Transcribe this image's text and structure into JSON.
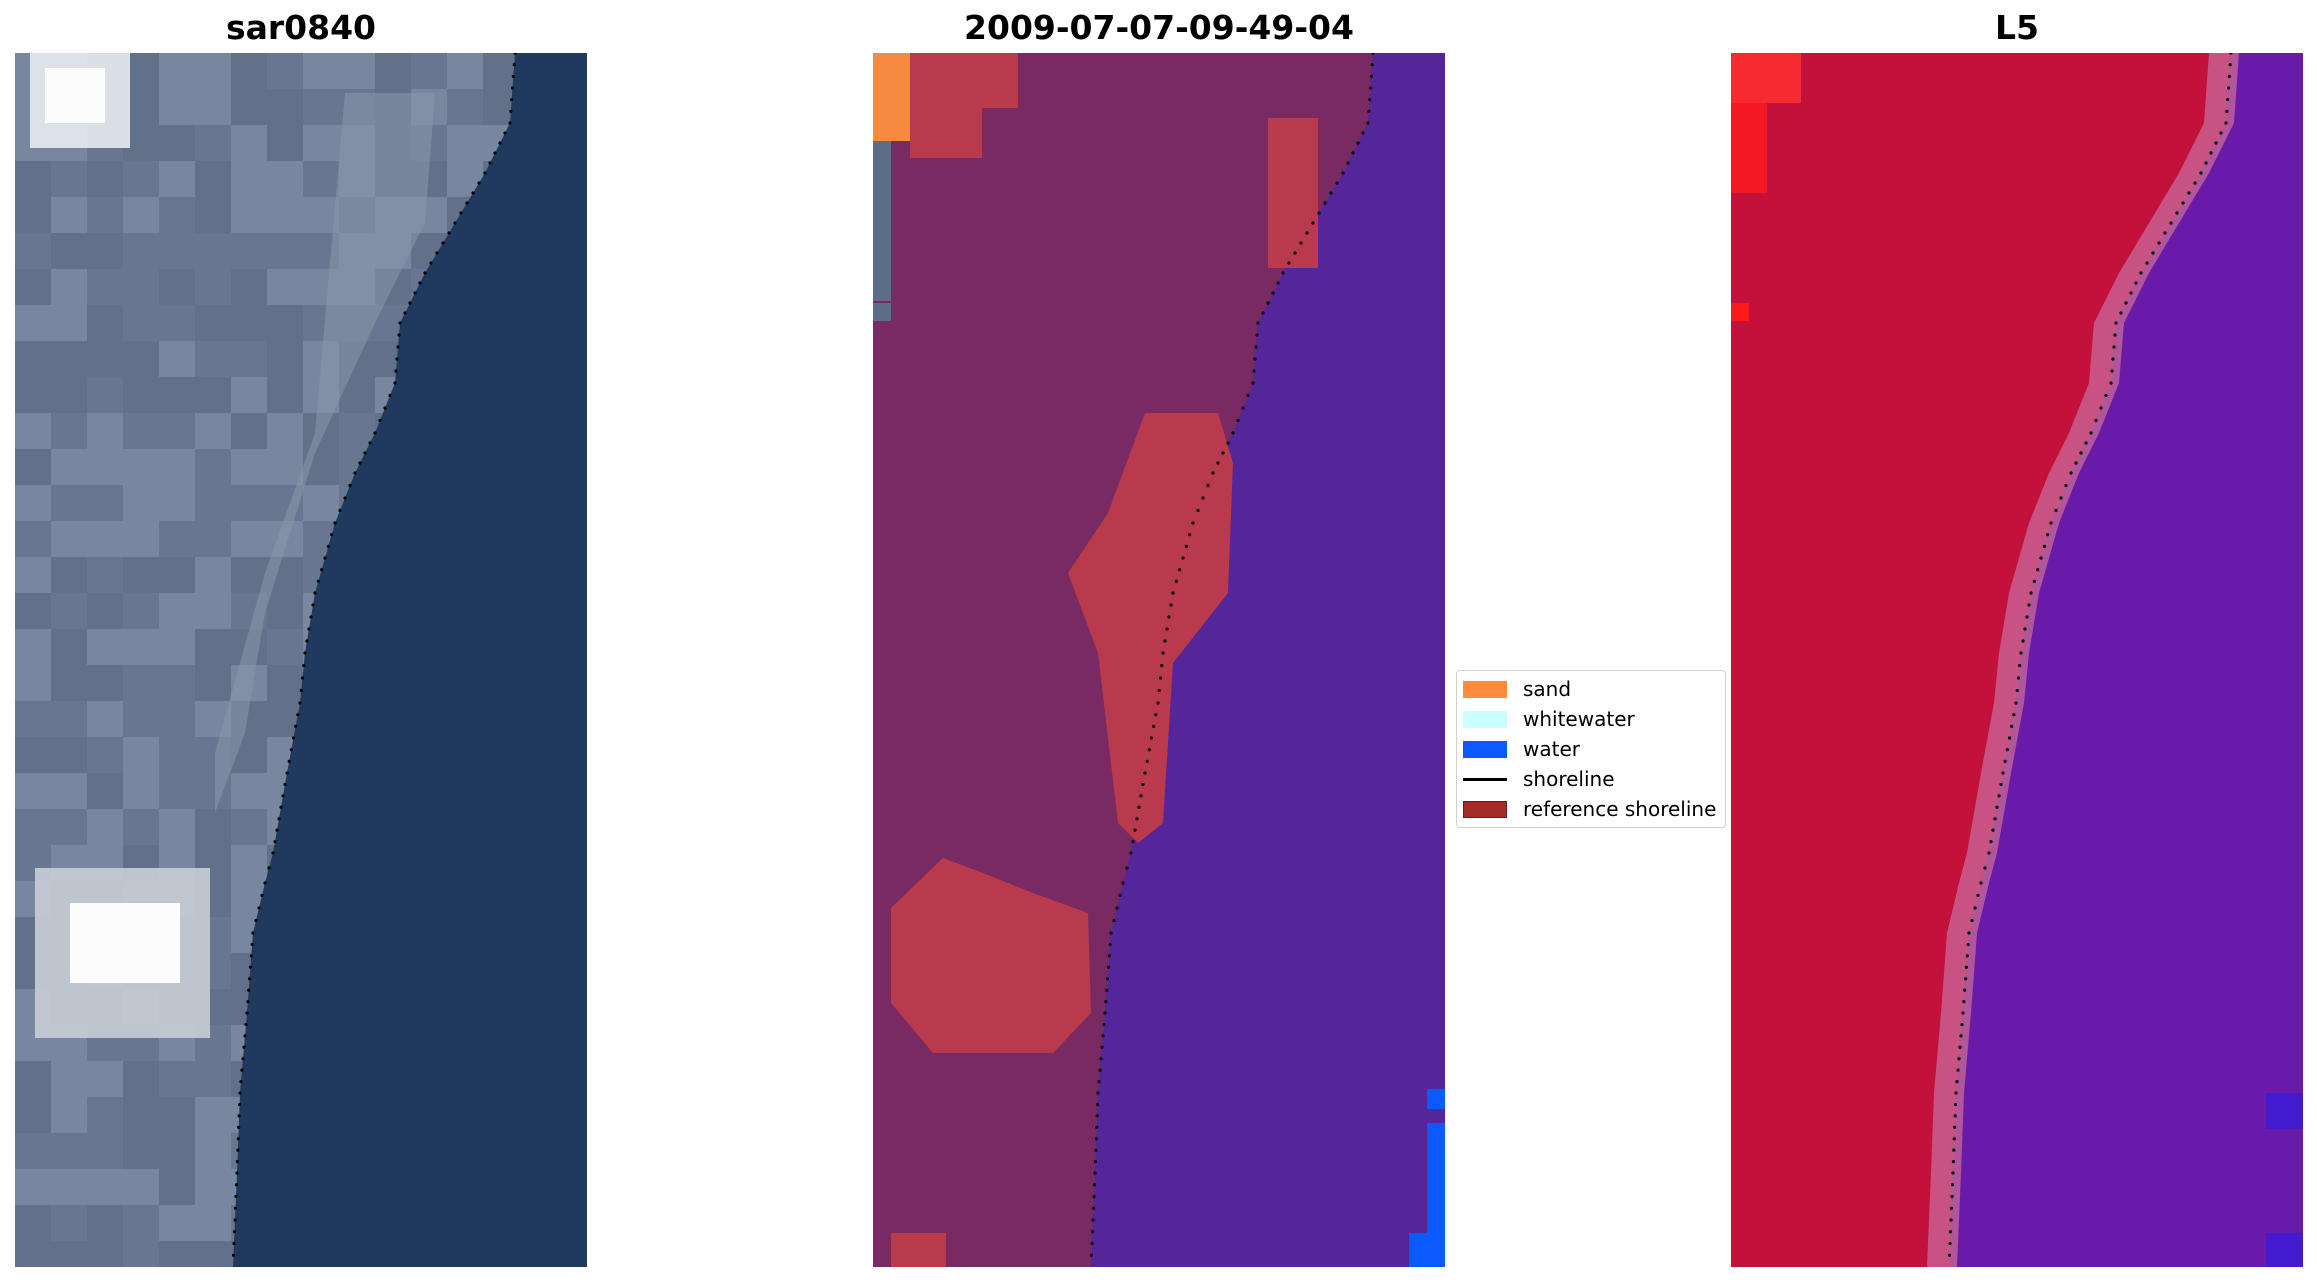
{
  "titles": {
    "left": "sar0840",
    "middle": "2009-07-07-09-49-04",
    "right": "L5"
  },
  "legend": {
    "items": [
      {
        "label": "sand",
        "kind": "patch",
        "color": "#ff8c3c",
        "edge": "#ff8c3c"
      },
      {
        "label": "whitewater",
        "kind": "patch",
        "color": "#c8ffff",
        "edge": "#c8ffff"
      },
      {
        "label": "water",
        "kind": "patch",
        "color": "#0a5aff",
        "edge": "#0a5aff"
      },
      {
        "label": "shoreline",
        "kind": "line",
        "color": "#000000"
      },
      {
        "label": "reference shoreline",
        "kind": "patch",
        "color": "#a52a2a",
        "edge": "#6b1a1a"
      }
    ]
  },
  "colors": {
    "rgb_land": "#6f7d96",
    "rgb_land_dark": "#5c6b85",
    "rgb_water": "#1f3a5c",
    "rgb_bright": "#e8ecef",
    "class_land": "#7a2a62",
    "class_sand_red": "#b83a4c",
    "class_sand": "#f58a40",
    "class_water_purple": "#55259a",
    "class_water_blue": "#0a5aff",
    "class_whitewater_grey": "#5d6d86",
    "index_land": "#c2123c",
    "index_water": "#6a1aa8",
    "index_strip": "#c96a9a",
    "index_hot": "#ff3030",
    "shoreline_dots": "#000000"
  }
}
